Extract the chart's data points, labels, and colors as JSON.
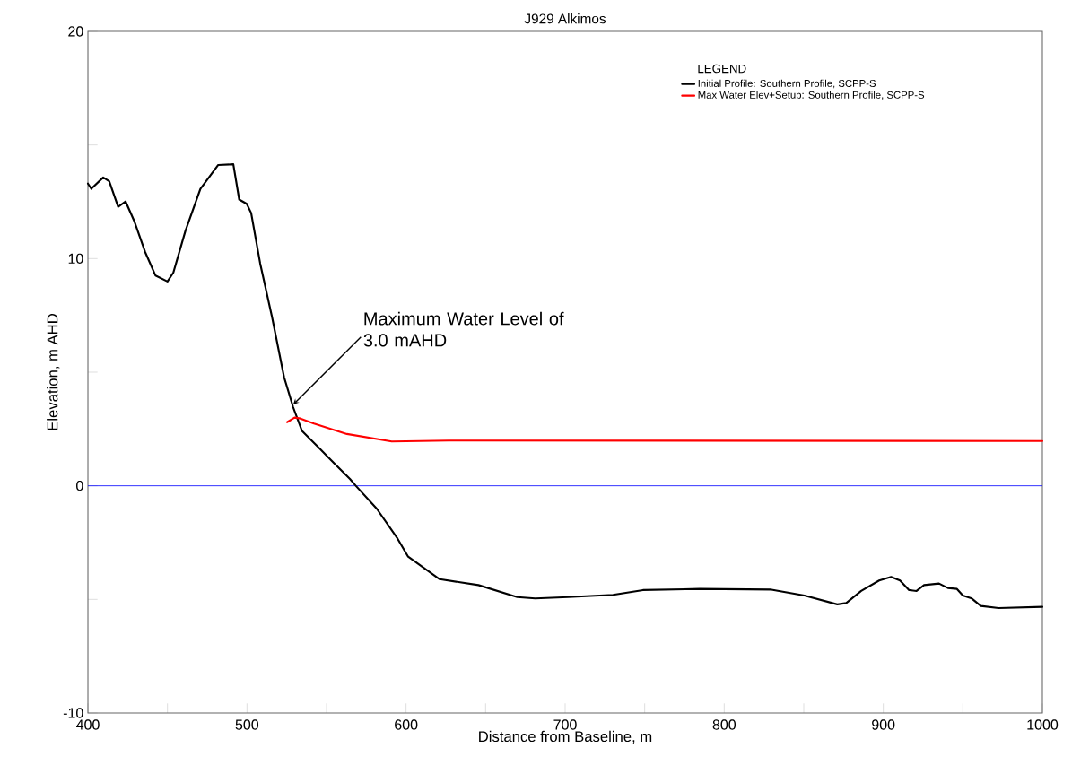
{
  "chart_data": {
    "type": "line",
    "title": "J929 Alkimos",
    "xlabel": "Distance from Baseline, m",
    "ylabel": "Elevation, m AHD",
    "legend_title": "LEGEND",
    "legend": "top right",
    "grid": false,
    "marker": "none",
    "line_style": "solid",
    "xlim": [
      400,
      1000
    ],
    "ylim": [
      -10,
      20
    ],
    "xticks": [
      400,
      {
        "value": 450,
        "label": null
      },
      500,
      {
        "value": 550,
        "label": null
      },
      600,
      {
        "value": 650,
        "label": null
      },
      700,
      {
        "value": 750,
        "label": null
      },
      800,
      {
        "value": 850,
        "label": null
      },
      900,
      {
        "value": 950,
        "label": null
      },
      1000
    ],
    "yticks": [
      -10,
      {
        "value": -5,
        "label": null
      },
      0,
      {
        "value": 5,
        "label": null
      },
      10,
      {
        "value": 15,
        "label": null
      },
      20
    ],
    "ref_lines": [
      {
        "axis": "y",
        "value": 0,
        "color": "#0000ff"
      }
    ],
    "annotations": [
      {
        "text": "Maximum Water Level of 3.0 mAHD",
        "x": 528,
        "y": 3.5
      }
    ],
    "series": [
      {
        "name": "Initial Profile: Southern Profile, SCPP-S",
        "color": "#000000",
        "x": [
          400,
          402.1,
          409.6,
          413.4,
          419,
          423.7,
          429.3,
          435.9,
          442.5,
          450,
          453.7,
          461.3,
          470.7,
          481.9,
          491.4,
          495.1,
          499.8,
          502.6,
          508.3,
          515.8,
          523.3,
          529,
          534.6,
          545.9,
          555.2,
          564.7,
          568.4,
          581.6,
          594.7,
          601.3,
          621.1,
          645.5,
          669.9,
          681.2,
          701.9,
          730.1,
          748.9,
          784.6,
          829.7,
          850.4,
          871.1,
          876.7,
          886.1,
          897.4,
          904.9,
          910.5,
          916.2,
          920.9,
          925.6,
          935,
          940.6,
          946.3,
          950,
          955.6,
          961.3,
          972.5,
          1000
        ],
        "values": [
          13.3,
          13.07,
          13.57,
          13.4,
          12.28,
          12.51,
          11.62,
          10.3,
          9.25,
          8.99,
          9.38,
          11.22,
          13.07,
          14.12,
          14.15,
          12.6,
          12.41,
          12.01,
          9.78,
          7.41,
          4.78,
          3.46,
          2.41,
          1.62,
          0.96,
          0.3,
          0,
          -1.01,
          -2.33,
          -3.12,
          -4.11,
          -4.37,
          -4.9,
          -4.96,
          -4.9,
          -4.8,
          -4.59,
          -4.54,
          -4.57,
          -4.83,
          -5.22,
          -5.16,
          -4.63,
          -4.17,
          -4.01,
          -4.17,
          -4.59,
          -4.63,
          -4.37,
          -4.3,
          -4.5,
          -4.54,
          -4.83,
          -4.96,
          -5.29,
          -5.38,
          -5.33
        ]
      },
      {
        "name": "Max Water Elev+Setup: Southern Profile, SCPP-S",
        "color": "#ff0000",
        "x": [
          525.2,
          529.9,
          533.6,
          542.1,
          562.8,
          591,
          626.7,
          1000
        ],
        "values": [
          2.8,
          3.0,
          2.96,
          2.74,
          2.28,
          1.95,
          1.99,
          1.97
        ]
      }
    ]
  }
}
